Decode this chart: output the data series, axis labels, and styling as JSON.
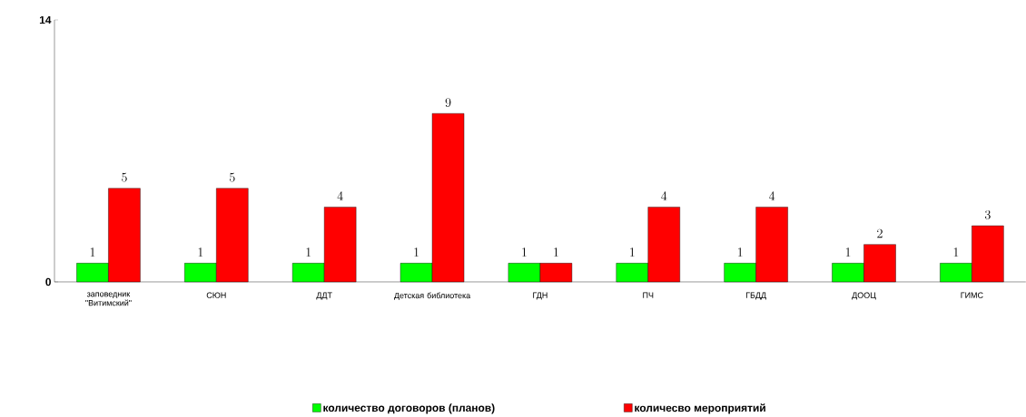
{
  "chart_data": {
    "type": "bar",
    "categories": [
      "заповедник \"Витимский\"",
      "СЮН",
      "ДДТ",
      "Детская библиотека",
      "ГДН",
      "ПЧ",
      "ГБДД",
      "ДООЦ",
      "ГИМС"
    ],
    "series": [
      {
        "name": "количество договоров (планов)",
        "color": "#00ff00",
        "values": [
          1,
          1,
          1,
          1,
          1,
          1,
          1,
          1,
          1
        ]
      },
      {
        "name": "количесво мероприятий",
        "color": "#ff0000",
        "values": [
          5,
          5,
          4,
          9,
          1,
          4,
          4,
          2,
          3
        ]
      }
    ],
    "ylim": [
      0,
      14
    ],
    "yticks": [
      0,
      14
    ],
    "data_labels": true,
    "legend": "bottom",
    "grid": false
  }
}
